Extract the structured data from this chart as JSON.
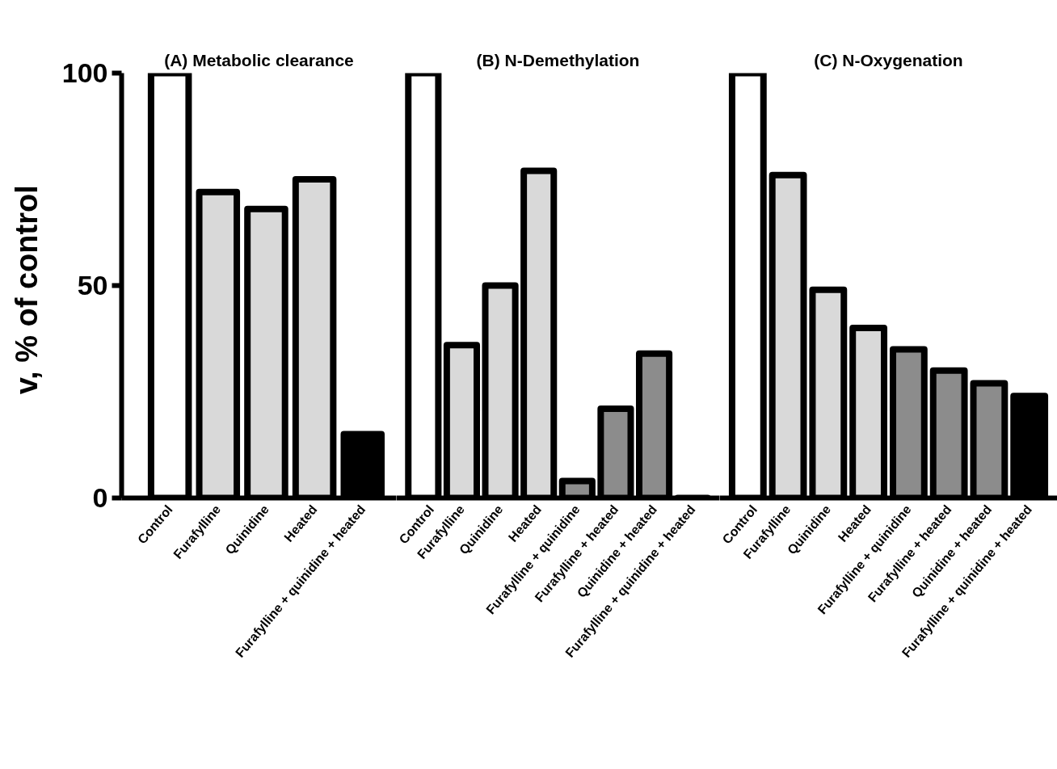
{
  "chart_data": [
    {
      "type": "bar",
      "title": "(A) Metabolic clearance",
      "ylabel": "v,  % of control",
      "categories": [
        "Control",
        "Furafylline",
        "Quinidine",
        "Heated",
        "Furafylline + quinidine + heated"
      ],
      "values": [
        100,
        72,
        68,
        75,
        15
      ],
      "colors": [
        "#ffffff",
        "#d9d9d9",
        "#d9d9d9",
        "#d9d9d9",
        "#000000"
      ],
      "ylim": [
        0,
        100
      ],
      "yticks": [
        0,
        50,
        100
      ],
      "grid": false
    },
    {
      "type": "bar",
      "title": "(B) N-Demethylation",
      "categories": [
        "Control",
        "Furafylline",
        "Quinidine",
        "Heated",
        "Furafylline + quinidine",
        "Furafylline + heated",
        "Quinidine + heated",
        "Furafylline + quinidine + heated"
      ],
      "values": [
        100,
        36,
        50,
        77,
        4,
        21,
        34,
        0
      ],
      "colors": [
        "#ffffff",
        "#d9d9d9",
        "#d9d9d9",
        "#d9d9d9",
        "#8c8c8c",
        "#8c8c8c",
        "#8c8c8c",
        "#000000"
      ],
      "ylim": [
        0,
        100
      ],
      "yticks": [
        0,
        50,
        100
      ],
      "grid": false,
      "tick_labels": "x"
    },
    {
      "type": "bar",
      "title": "(C) N-Oxygenation",
      "categories": [
        "Control",
        "Furafylline",
        "Quinidine",
        "Heated",
        "Furafylline + quinidine",
        "Furafylline + heated",
        "Quinidine + heated",
        "Furafylline + quinidine + heated"
      ],
      "values": [
        100,
        76,
        49,
        40,
        35,
        30,
        27,
        24
      ],
      "colors": [
        "#ffffff",
        "#d9d9d9",
        "#d9d9d9",
        "#d9d9d9",
        "#8c8c8c",
        "#8c8c8c",
        "#8c8c8c",
        "#000000"
      ],
      "ylim": [
        0,
        100
      ],
      "yticks": [
        0,
        50,
        100
      ],
      "grid": false,
      "tick_labels": "x"
    }
  ]
}
